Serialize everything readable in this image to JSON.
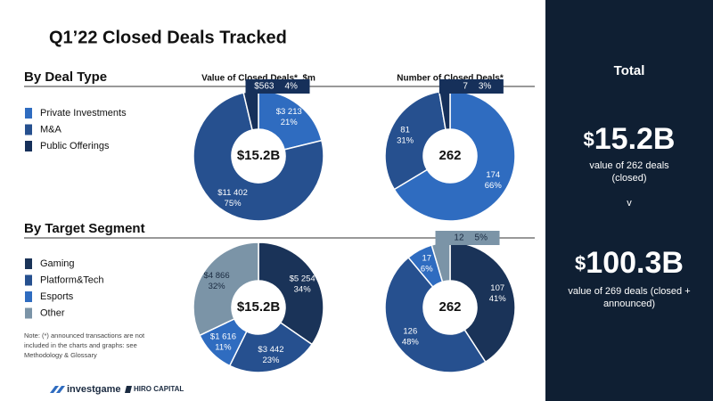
{
  "title": "Q1’22 Closed Deals Tracked",
  "sections": [
    {
      "title": "By Deal Type"
    },
    {
      "title": "By Target Segment"
    }
  ],
  "note": [
    "Note: (*) announced transactions are not",
    "included in the charts and graphs: see",
    "Methodology & Glossary"
  ],
  "logos": [
    "investgame",
    "HIRO CAPITAL"
  ],
  "sidebar": {
    "title": "Total",
    "totals": [
      {
        "currency": "$",
        "amount": "15.2B",
        "lines": [
          "value of 262 deals",
          "(closed)"
        ]
      },
      {
        "currency": "$",
        "amount": "100.3B",
        "lines": [
          "value of 269 deals (closed +",
          "announced)"
        ]
      }
    ],
    "separator": "v"
  },
  "chart_data": [
    {
      "type": "donut",
      "title": "Value of Closed Deals*, $m",
      "center_label": "$15.2B",
      "categories": [
        "Private Investments",
        "M&A",
        "Public Offerings"
      ],
      "colors": [
        "#2f6cc0",
        "#26508f",
        "#16305a"
      ],
      "values": [
        3213,
        11402,
        563
      ],
      "value_labels": [
        "$3 213",
        "$11 402",
        "$563"
      ],
      "percents": [
        21,
        75,
        4
      ],
      "percent_labels": [
        "21%",
        "75%",
        "4%"
      ]
    },
    {
      "type": "donut",
      "title": "Number of Closed Deals*",
      "center_label": "262",
      "categories": [
        "Private Investments",
        "M&A",
        "Public Offerings"
      ],
      "colors": [
        "#2f6cc0",
        "#26508f",
        "#16305a"
      ],
      "values": [
        174,
        81,
        7
      ],
      "percents": [
        66,
        31,
        3
      ],
      "percent_labels": [
        "66%",
        "31%",
        "3%"
      ]
    },
    {
      "type": "donut",
      "center_label": "$15.2B",
      "categories": [
        "Gaming",
        "Platform&Tech",
        "Esports",
        "Other"
      ],
      "colors": [
        "#1a3358",
        "#26508f",
        "#2f6cc0",
        "#7b94a7"
      ],
      "values": [
        5254,
        3442,
        1616,
        4866
      ],
      "value_labels": [
        "$5 254",
        "$3 442",
        "$1 616",
        "$4 866"
      ],
      "percents": [
        34,
        23,
        11,
        32
      ],
      "percent_labels": [
        "34%",
        "23%",
        "11%",
        "32%"
      ]
    },
    {
      "type": "donut",
      "center_label": "262",
      "categories": [
        "Gaming",
        "Platform&Tech",
        "Esports",
        "Other"
      ],
      "colors": [
        "#1a3358",
        "#26508f",
        "#2f6cc0",
        "#7b94a7"
      ],
      "values": [
        107,
        126,
        17,
        12
      ],
      "percents": [
        41,
        48,
        6,
        5
      ],
      "percent_labels": [
        "41%",
        "48%",
        "6%",
        "5%"
      ]
    }
  ]
}
